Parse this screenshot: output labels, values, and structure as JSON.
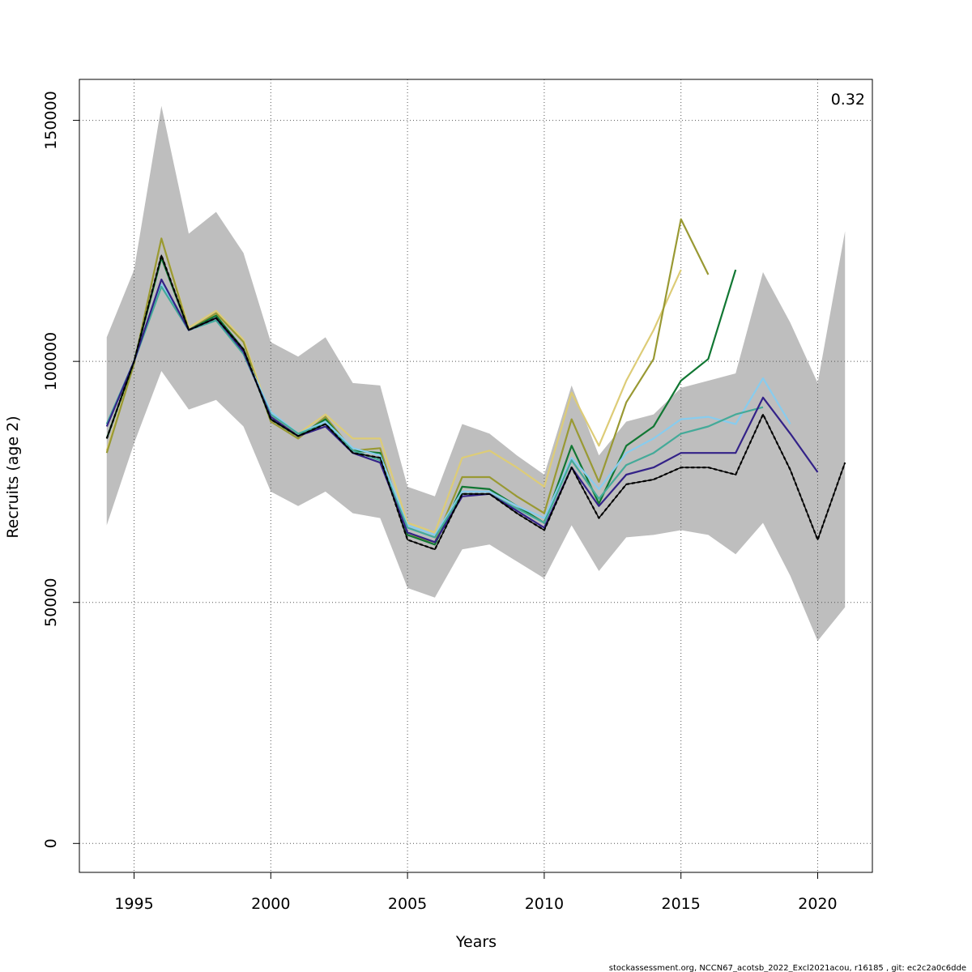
{
  "chart_data": {
    "type": "line",
    "title": "",
    "xlabel": "Years",
    "ylabel": "Recruits (age 2)",
    "xlim": [
      1993,
      2022
    ],
    "ylim": [
      -6000,
      158500
    ],
    "x_ticks": [
      1995,
      2000,
      2005,
      2010,
      2015,
      2020
    ],
    "x_tick_labels": [
      "1995",
      "2000",
      "2005",
      "2010",
      "2015",
      "2020"
    ],
    "y_ticks": [
      0,
      50000,
      100000,
      150000
    ],
    "y_tick_labels": [
      "0",
      "50000",
      "100000",
      "150000"
    ],
    "grid": true,
    "annotation": "0.32",
    "footer": "stockassessment.org, NCCN67_acotsb_2022_Excl2021acou, r16185 , git: ec2c2a0c6dde",
    "band": {
      "color": "#bebebe",
      "x": [
        1994,
        1995,
        1996,
        1997,
        1998,
        1999,
        2000,
        2001,
        2002,
        2003,
        2004,
        2005,
        2006,
        2007,
        2008,
        2009,
        2010,
        2011,
        2012,
        2013,
        2014,
        2015,
        2016,
        2017,
        2018,
        2019,
        2020,
        2021
      ],
      "lower": [
        66000,
        83000,
        98000,
        90000,
        92000,
        86500,
        73000,
        70000,
        73000,
        68500,
        67500,
        53000,
        51000,
        61000,
        62000,
        58500,
        55000,
        66000,
        56500,
        63500,
        64000,
        65000,
        64000,
        60000,
        66500,
        55500,
        42000,
        49000
      ],
      "upper": [
        105000,
        119000,
        153000,
        126500,
        131000,
        122500,
        104000,
        101000,
        105000,
        95500,
        95000,
        74000,
        72000,
        87000,
        85000,
        80500,
        76500,
        95000,
        80500,
        87500,
        89000,
        94500,
        96000,
        97500,
        118500,
        108000,
        95500,
        127000
      ]
    },
    "series": [
      {
        "color": "#ddcc77",
        "width": 2.2,
        "x": [
          1994,
          1995,
          1996,
          1997,
          1998,
          1999,
          2000,
          2001,
          2002,
          2003,
          2004,
          2005,
          2006,
          2007,
          2008,
          2009,
          2010,
          2011,
          2012,
          2013,
          2014,
          2015
        ],
        "values": [
          81500,
          99500,
          125500,
          107000,
          110500,
          104500,
          88500,
          85000,
          89000,
          84000,
          84000,
          66500,
          64500,
          80000,
          81500,
          78000,
          74000,
          93500,
          82500,
          96000,
          106500,
          119000
        ]
      },
      {
        "color": "#999933",
        "width": 2.2,
        "x": [
          1994,
          1995,
          1996,
          1997,
          1998,
          1999,
          2000,
          2001,
          2002,
          2003,
          2004,
          2005,
          2006,
          2007,
          2008,
          2009,
          2010,
          2011,
          2012,
          2013,
          2014,
          2015,
          2016
        ],
        "values": [
          81000,
          99500,
          125500,
          106500,
          110000,
          104000,
          87500,
          84000,
          88500,
          81500,
          82000,
          64000,
          62500,
          76000,
          76000,
          72000,
          68500,
          88000,
          75000,
          91500,
          100500,
          129500,
          118000
        ]
      },
      {
        "color": "#117733",
        "width": 2.2,
        "x": [
          1994,
          1995,
          1996,
          1997,
          1998,
          1999,
          2000,
          2001,
          2002,
          2003,
          2004,
          2005,
          2006,
          2007,
          2008,
          2009,
          2010,
          2011,
          2012,
          2013,
          2014,
          2015,
          2016,
          2017
        ],
        "values": [
          84000,
          100000,
          121500,
          106500,
          109500,
          102500,
          88000,
          84500,
          88000,
          81500,
          81000,
          64000,
          62000,
          74000,
          73500,
          70000,
          66500,
          82500,
          70500,
          82500,
          86500,
          96000,
          100500,
          119000
        ]
      },
      {
        "color": "#88ccee",
        "width": 2.2,
        "x": [
          1994,
          1995,
          1996,
          1997,
          1998,
          1999,
          2000,
          2001,
          2002,
          2003,
          2004,
          2005,
          2006,
          2007,
          2008,
          2009,
          2010,
          2011,
          2012,
          2013,
          2014,
          2015,
          2016,
          2017,
          2018,
          2019
        ],
        "values": [
          87000,
          100000,
          116000,
          106500,
          108500,
          102000,
          89500,
          85000,
          87500,
          82000,
          80500,
          66000,
          64000,
          73000,
          73000,
          70000,
          67500,
          80000,
          73500,
          81000,
          84000,
          88000,
          88500,
          87000,
          96500,
          87000
        ]
      },
      {
        "color": "#44aa99",
        "width": 2.2,
        "x": [
          1994,
          1995,
          1996,
          1997,
          1998,
          1999,
          2000,
          2001,
          2002,
          2003,
          2004,
          2005,
          2006,
          2007,
          2008,
          2009,
          2010,
          2011,
          2012,
          2013,
          2014,
          2015,
          2016,
          2017,
          2018
        ],
        "values": [
          87000,
          100000,
          115500,
          106500,
          108500,
          101500,
          89000,
          85000,
          87000,
          81500,
          79500,
          65500,
          63500,
          72500,
          72500,
          69500,
          66500,
          79500,
          71500,
          78500,
          81000,
          85000,
          86500,
          89000,
          90500
        ]
      },
      {
        "color": "#332288",
        "width": 2.2,
        "x": [
          1994,
          1995,
          1996,
          1997,
          1998,
          1999,
          2000,
          2001,
          2002,
          2003,
          2004,
          2005,
          2006,
          2007,
          2008,
          2009,
          2010,
          2011,
          2012,
          2013,
          2014,
          2015,
          2016,
          2017,
          2018,
          2019,
          2020
        ],
        "values": [
          86500,
          100000,
          117000,
          106500,
          109000,
          102000,
          88500,
          84500,
          86500,
          81000,
          79000,
          64500,
          62500,
          72000,
          72500,
          69000,
          65500,
          78000,
          70000,
          76500,
          78000,
          81000,
          81000,
          81000,
          92500,
          85000,
          77000
        ]
      },
      {
        "color": "#000000",
        "width": 2.2,
        "dash": "4,3",
        "x": [
          1994,
          1995,
          1996,
          1997,
          1998,
          1999,
          2000,
          2001,
          2002,
          2003,
          2004,
          2005,
          2006,
          2007,
          2008,
          2009,
          2010,
          2011,
          2012,
          2013,
          2014,
          2015,
          2016,
          2017,
          2018,
          2019,
          2020,
          2021
        ],
        "values": [
          84000,
          100000,
          122000,
          106500,
          109000,
          102500,
          88000,
          84500,
          87000,
          81000,
          80000,
          63000,
          61000,
          72500,
          72500,
          68500,
          65000,
          78000,
          67500,
          74500,
          75500,
          78000,
          78000,
          76500,
          89000,
          77500,
          63000,
          79000
        ]
      },
      {
        "color": "#000000",
        "width": 1.4,
        "x": [
          1994,
          1995,
          1996,
          1997,
          1998,
          1999,
          2000,
          2001,
          2002,
          2003,
          2004,
          2005,
          2006,
          2007,
          2008,
          2009,
          2010,
          2011,
          2012,
          2013,
          2014,
          2015,
          2016,
          2017,
          2018,
          2019,
          2020,
          2021
        ],
        "values": [
          84000,
          100000,
          122000,
          106500,
          109000,
          102500,
          88000,
          84500,
          87000,
          81000,
          80000,
          63000,
          61000,
          72500,
          72500,
          68500,
          65000,
          78000,
          67500,
          74500,
          75500,
          78000,
          78000,
          76500,
          89000,
          77500,
          63000,
          79000
        ]
      }
    ]
  }
}
